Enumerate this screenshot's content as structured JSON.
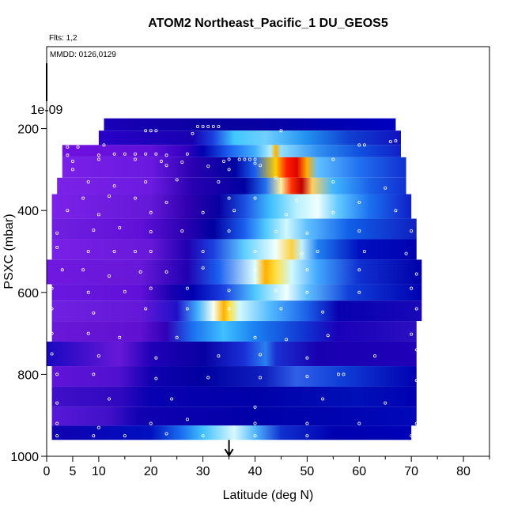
{
  "chart_data": {
    "type": "heatmap",
    "title": "ATOM2 Northeast_Pacific_1 DU_GEOS5",
    "flights_note": "Flts: 1,2",
    "dates_note": "MMDD: 0126,0129",
    "xlabel": "Latitude (deg N)",
    "ylabel": "PSXC (mbar)",
    "xlim": [
      0,
      85
    ],
    "ylim": [
      1000,
      0
    ],
    "x_ticks": [
      0,
      5,
      10,
      20,
      30,
      40,
      50,
      60,
      70,
      80
    ],
    "y_ticks": [
      200,
      400,
      600,
      800,
      1000
    ],
    "y_extra_label": "1e-09",
    "marker_latitude": 35,
    "bands": [
      {
        "p_top": 175,
        "p_bot": 205,
        "lat_start": 11,
        "lat_end": 67,
        "stops": [
          [
            11,
            "#1a00b8"
          ],
          [
            30,
            "#0a00a0"
          ],
          [
            40,
            "#0800a0"
          ],
          [
            55,
            "#0000b0"
          ],
          [
            67,
            "#0000c0"
          ]
        ]
      },
      {
        "p_top": 205,
        "p_bot": 240,
        "lat_start": 10,
        "lat_end": 68,
        "stops": [
          [
            10,
            "#2800c8"
          ],
          [
            28,
            "#1800b0"
          ],
          [
            32,
            "#1a40e0"
          ],
          [
            36,
            "#40c8ff"
          ],
          [
            42,
            "#70d0ff"
          ],
          [
            50,
            "#2090f0"
          ],
          [
            58,
            "#1040d0"
          ],
          [
            68,
            "#1010c0"
          ]
        ]
      },
      {
        "p_top": 240,
        "p_bot": 270,
        "lat_start": 3,
        "lat_end": 68,
        "stops": [
          [
            3,
            "#7010e0"
          ],
          [
            20,
            "#6010d8"
          ],
          [
            27,
            "#3000c0"
          ],
          [
            30,
            "#0000b0"
          ],
          [
            35,
            "#1a60f0"
          ],
          [
            40,
            "#40b0ff"
          ],
          [
            43,
            "#b0f0ff"
          ],
          [
            44,
            "#ffb000"
          ],
          [
            45,
            "#90e0ff"
          ],
          [
            52,
            "#3090f0"
          ],
          [
            60,
            "#1050e0"
          ],
          [
            68,
            "#1020c8"
          ]
        ]
      },
      {
        "p_top": 270,
        "p_bot": 320,
        "lat_start": 3,
        "lat_end": 69,
        "stops": [
          [
            3,
            "#7a20e8"
          ],
          [
            20,
            "#6a18e0"
          ],
          [
            28,
            "#2a00b0"
          ],
          [
            36,
            "#0000a0"
          ],
          [
            40,
            "#1a60f0"
          ],
          [
            44,
            "#ffd000"
          ],
          [
            46,
            "#ff2000"
          ],
          [
            48,
            "#e00000"
          ],
          [
            50,
            "#ffb000"
          ],
          [
            52,
            "#60c0ff"
          ],
          [
            60,
            "#2070f0"
          ],
          [
            69,
            "#1030d0"
          ]
        ]
      },
      {
        "p_top": 320,
        "p_bot": 360,
        "lat_start": 2,
        "lat_end": 69,
        "stops": [
          [
            2,
            "#7c22e8"
          ],
          [
            20,
            "#6c1ae0"
          ],
          [
            28,
            "#2800b0"
          ],
          [
            38,
            "#0000a0"
          ],
          [
            42,
            "#2070f0"
          ],
          [
            45,
            "#fff0a0"
          ],
          [
            47,
            "#ff3000"
          ],
          [
            49,
            "#c00000"
          ],
          [
            51,
            "#ffd060"
          ],
          [
            55,
            "#40b8ff"
          ],
          [
            62,
            "#1a60e8"
          ],
          [
            69,
            "#1030d0"
          ]
        ]
      },
      {
        "p_top": 360,
        "p_bot": 420,
        "lat_start": 1,
        "lat_end": 70,
        "stops": [
          [
            1,
            "#7c22e8"
          ],
          [
            20,
            "#6418d8"
          ],
          [
            27,
            "#3000b0"
          ],
          [
            33,
            "#0800a0"
          ],
          [
            38,
            "#1a50e0"
          ],
          [
            43,
            "#40c0ff"
          ],
          [
            48,
            "#b8f0ff"
          ],
          [
            52,
            "#f0ffff"
          ],
          [
            56,
            "#60c8ff"
          ],
          [
            62,
            "#1a70f0"
          ],
          [
            70,
            "#1020c8"
          ]
        ]
      },
      {
        "p_top": 420,
        "p_bot": 470,
        "lat_start": 1,
        "lat_end": 71,
        "stops": [
          [
            1,
            "#7020e0"
          ],
          [
            18,
            "#6010d8"
          ],
          [
            27,
            "#2800b0"
          ],
          [
            32,
            "#0000a0"
          ],
          [
            38,
            "#1a60f0"
          ],
          [
            42,
            "#50c8ff"
          ],
          [
            46,
            "#d0f8ff"
          ],
          [
            50,
            "#60c0ff"
          ],
          [
            58,
            "#1060e8"
          ],
          [
            71,
            "#1020c0"
          ]
        ]
      },
      {
        "p_top": 470,
        "p_bot": 520,
        "lat_start": 1,
        "lat_end": 71,
        "stops": [
          [
            1,
            "#7a20e8"
          ],
          [
            20,
            "#6818d8"
          ],
          [
            27,
            "#2000b0"
          ],
          [
            32,
            "#1a40e0"
          ],
          [
            38,
            "#60d0ff"
          ],
          [
            44,
            "#f0ffff"
          ],
          [
            47,
            "#ffd040"
          ],
          [
            49,
            "#c0f0ff"
          ],
          [
            52,
            "#2080f0"
          ],
          [
            60,
            "#0010c0"
          ],
          [
            71,
            "#0000b0"
          ]
        ]
      },
      {
        "p_top": 520,
        "p_bot": 580,
        "lat_start": 0,
        "lat_end": 72,
        "stops": [
          [
            0,
            "#7018e0"
          ],
          [
            18,
            "#6818d8"
          ],
          [
            27,
            "#2000b0"
          ],
          [
            33,
            "#1a60f0"
          ],
          [
            40,
            "#e0ffff"
          ],
          [
            42,
            "#ffb000"
          ],
          [
            44,
            "#ffe040"
          ],
          [
            47,
            "#d0f8ff"
          ],
          [
            52,
            "#40a8ff"
          ],
          [
            60,
            "#1030d0"
          ],
          [
            72,
            "#0000a8"
          ]
        ]
      },
      {
        "p_top": 580,
        "p_bot": 620,
        "lat_start": 1,
        "lat_end": 72,
        "stops": [
          [
            1,
            "#6a18e0"
          ],
          [
            18,
            "#6010d8"
          ],
          [
            24,
            "#1800b0"
          ],
          [
            28,
            "#0000b0"
          ],
          [
            34,
            "#1a40e0"
          ],
          [
            40,
            "#50c8ff"
          ],
          [
            46,
            "#f0ffff"
          ],
          [
            50,
            "#60c0ff"
          ],
          [
            58,
            "#1040d8"
          ],
          [
            72,
            "#0000b0"
          ]
        ]
      },
      {
        "p_top": 620,
        "p_bot": 670,
        "lat_start": 1,
        "lat_end": 72,
        "stops": [
          [
            1,
            "#7020e0"
          ],
          [
            18,
            "#6418d8"
          ],
          [
            25,
            "#2010c8"
          ],
          [
            29,
            "#40b0ff"
          ],
          [
            32,
            "#f8fff0"
          ],
          [
            34,
            "#ffb000"
          ],
          [
            35,
            "#ffe040"
          ],
          [
            37,
            "#d0f8ff"
          ],
          [
            43,
            "#50b8ff"
          ],
          [
            50,
            "#1a60e8"
          ],
          [
            56,
            "#0800b0"
          ],
          [
            72,
            "#1808b8"
          ]
        ]
      },
      {
        "p_top": 670,
        "p_bot": 720,
        "lat_start": 1,
        "lat_end": 71,
        "stops": [
          [
            1,
            "#6a18d8"
          ],
          [
            18,
            "#6010d0"
          ],
          [
            23,
            "#3000b8"
          ],
          [
            28,
            "#1a70f0"
          ],
          [
            34,
            "#40c0ff"
          ],
          [
            40,
            "#1a80f0"
          ],
          [
            50,
            "#1030d0"
          ],
          [
            56,
            "#1a00b8"
          ],
          [
            71,
            "#2a10c0"
          ]
        ]
      },
      {
        "p_top": 720,
        "p_bot": 780,
        "lat_start": 0,
        "lat_end": 71,
        "stops": [
          [
            0,
            "#1808c0"
          ],
          [
            14,
            "#6818d8"
          ],
          [
            20,
            "#2000b8"
          ],
          [
            30,
            "#0800a0"
          ],
          [
            38,
            "#1a30d8"
          ],
          [
            42,
            "#2a80f0"
          ],
          [
            44,
            "#1a30d0"
          ],
          [
            52,
            "#1800b0"
          ],
          [
            71,
            "#2000b8"
          ]
        ]
      },
      {
        "p_top": 780,
        "p_bot": 830,
        "lat_start": 1,
        "lat_end": 71,
        "stops": [
          [
            1,
            "#6014d8"
          ],
          [
            14,
            "#5010d0"
          ],
          [
            20,
            "#1000b0"
          ],
          [
            30,
            "#0000a0"
          ],
          [
            42,
            "#1020c0"
          ],
          [
            48,
            "#3060e8"
          ],
          [
            56,
            "#1040d8"
          ],
          [
            71,
            "#0000b0"
          ]
        ]
      },
      {
        "p_top": 830,
        "p_bot": 880,
        "lat_start": 1,
        "lat_end": 71,
        "stops": [
          [
            1,
            "#4010c8"
          ],
          [
            14,
            "#3008c0"
          ],
          [
            20,
            "#0800b0"
          ],
          [
            40,
            "#0000a8"
          ],
          [
            60,
            "#0010b8"
          ],
          [
            71,
            "#0000b0"
          ]
        ]
      },
      {
        "p_top": 880,
        "p_bot": 925,
        "lat_start": 1,
        "lat_end": 71,
        "stops": [
          [
            1,
            "#5818d8"
          ],
          [
            12,
            "#4010c8"
          ],
          [
            18,
            "#1000b0"
          ],
          [
            40,
            "#0000a8"
          ],
          [
            71,
            "#0008b8"
          ]
        ]
      },
      {
        "p_top": 925,
        "p_bot": 960,
        "lat_start": 1,
        "lat_end": 70,
        "stops": [
          [
            1,
            "#1000b0"
          ],
          [
            20,
            "#0010c0"
          ],
          [
            26,
            "#1a70f0"
          ],
          [
            30,
            "#40c0ff"
          ],
          [
            36,
            "#d8f8ff"
          ],
          [
            40,
            "#50b8ff"
          ],
          [
            45,
            "#1030d0"
          ],
          [
            55,
            "#0000b0"
          ],
          [
            70,
            "#0000b8"
          ]
        ]
      }
    ],
    "obs_points": [
      [
        19,
        205
      ],
      [
        20,
        205
      ],
      [
        21,
        205
      ],
      [
        29,
        195
      ],
      [
        30,
        195
      ],
      [
        31,
        195
      ],
      [
        32,
        195
      ],
      [
        33,
        195
      ],
      [
        28,
        212
      ],
      [
        45,
        205
      ],
      [
        60,
        240
      ],
      [
        61,
        240
      ],
      [
        66,
        232
      ],
      [
        67,
        230
      ],
      [
        4,
        245
      ],
      [
        6,
        245
      ],
      [
        11,
        240
      ],
      [
        4,
        265
      ],
      [
        10,
        265
      ],
      [
        13,
        262
      ],
      [
        15,
        262
      ],
      [
        17,
        262
      ],
      [
        19,
        262
      ],
      [
        21,
        262
      ],
      [
        23,
        265
      ],
      [
        27,
        262
      ],
      [
        17,
        275
      ],
      [
        5,
        280
      ],
      [
        10,
        275
      ],
      [
        22,
        280
      ],
      [
        26,
        282
      ],
      [
        35,
        275
      ],
      [
        37,
        275
      ],
      [
        38,
        275
      ],
      [
        39,
        275
      ],
      [
        40,
        275
      ],
      [
        34,
        280
      ],
      [
        40,
        285
      ],
      [
        55,
        275
      ],
      [
        5,
        300
      ],
      [
        23,
        290
      ],
      [
        31,
        292
      ],
      [
        35,
        300
      ],
      [
        41,
        290
      ],
      [
        8,
        330
      ],
      [
        13,
        340
      ],
      [
        19,
        330
      ],
      [
        25,
        325
      ],
      [
        33,
        330
      ],
      [
        44,
        320
      ],
      [
        55,
        330
      ],
      [
        65,
        345
      ],
      [
        7,
        370
      ],
      [
        12,
        365
      ],
      [
        17,
        370
      ],
      [
        23,
        380
      ],
      [
        35,
        370
      ],
      [
        40,
        370
      ],
      [
        48,
        375
      ],
      [
        60,
        380
      ],
      [
        67,
        400
      ],
      [
        4,
        400
      ],
      [
        10,
        410
      ],
      [
        20,
        405
      ],
      [
        30,
        405
      ],
      [
        36,
        400
      ],
      [
        46,
        410
      ],
      [
        55,
        405
      ],
      [
        2,
        455
      ],
      [
        9,
        448
      ],
      [
        14,
        442
      ],
      [
        20,
        452
      ],
      [
        26,
        450
      ],
      [
        35,
        450
      ],
      [
        44,
        452
      ],
      [
        50,
        455
      ],
      [
        60,
        450
      ],
      [
        70,
        450
      ],
      [
        2,
        490
      ],
      [
        8,
        500
      ],
      [
        13,
        500
      ],
      [
        17,
        500
      ],
      [
        20,
        500
      ],
      [
        30,
        500
      ],
      [
        40,
        500
      ],
      [
        49,
        505
      ],
      [
        52,
        500
      ],
      [
        61,
        500
      ],
      [
        69,
        505
      ],
      [
        3,
        545
      ],
      [
        7,
        545
      ],
      [
        12,
        560
      ],
      [
        18,
        550
      ],
      [
        23,
        550
      ],
      [
        30,
        540
      ],
      [
        40,
        545
      ],
      [
        50,
        545
      ],
      [
        60,
        545
      ],
      [
        71,
        555
      ],
      [
        1,
        590
      ],
      [
        8,
        600
      ],
      [
        15,
        598
      ],
      [
        20,
        590
      ],
      [
        27,
        590
      ],
      [
        35,
        595
      ],
      [
        44,
        595
      ],
      [
        50,
        600
      ],
      [
        60,
        600
      ],
      [
        70,
        590
      ],
      [
        1,
        640
      ],
      [
        9,
        650
      ],
      [
        19,
        640
      ],
      [
        27,
        640
      ],
      [
        35,
        640
      ],
      [
        45,
        640
      ],
      [
        53,
        648
      ],
      [
        71,
        640
      ],
      [
        1,
        700
      ],
      [
        8,
        700
      ],
      [
        14,
        710
      ],
      [
        25,
        710
      ],
      [
        40,
        710
      ],
      [
        46,
        715
      ],
      [
        54,
        705
      ],
      [
        70,
        702
      ],
      [
        1,
        750
      ],
      [
        10,
        755
      ],
      [
        21,
        760
      ],
      [
        33,
        755
      ],
      [
        41,
        752
      ],
      [
        50,
        760
      ],
      [
        63,
        755
      ],
      [
        71,
        740
      ],
      [
        2,
        800
      ],
      [
        9,
        800
      ],
      [
        21,
        810
      ],
      [
        31,
        808
      ],
      [
        41,
        808
      ],
      [
        50,
        805
      ],
      [
        56,
        800
      ],
      [
        57,
        800
      ],
      [
        71,
        815
      ],
      [
        2,
        870
      ],
      [
        12,
        860
      ],
      [
        24,
        860
      ],
      [
        40,
        880
      ],
      [
        53,
        860
      ],
      [
        65,
        870
      ],
      [
        2,
        920
      ],
      [
        10,
        930
      ],
      [
        20,
        920
      ],
      [
        27,
        910
      ],
      [
        40,
        920
      ],
      [
        50,
        920
      ],
      [
        60,
        920
      ],
      [
        71,
        920
      ],
      [
        2,
        950
      ],
      [
        9,
        950
      ],
      [
        15,
        950
      ],
      [
        23,
        945
      ],
      [
        30,
        950
      ],
      [
        40,
        950
      ],
      [
        50,
        950
      ],
      [
        70,
        950
      ]
    ]
  }
}
